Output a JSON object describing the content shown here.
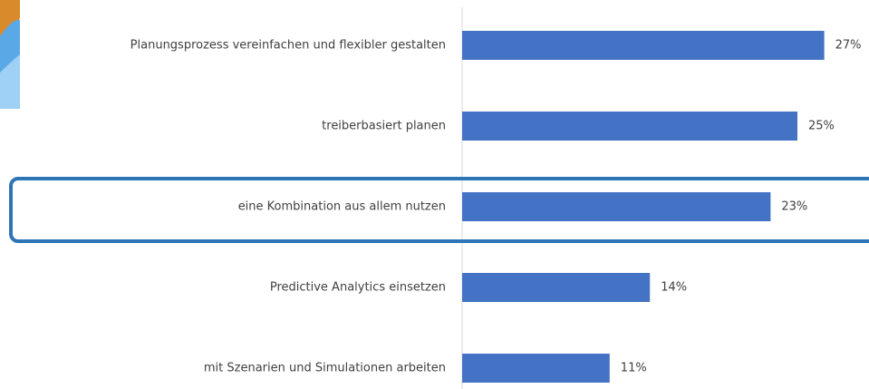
{
  "chart_data": {
    "type": "bar",
    "orientation": "horizontal",
    "categories": [
      "Planungsprozess vereinfachen und flexibler gestalten",
      "treiberbasiert planen",
      "eine Kombination aus allem nutzen",
      "Predictive Analytics einsetzen",
      "mit Szenarien und Simulationen arbeiten"
    ],
    "values": [
      27,
      25,
      23,
      14,
      11
    ],
    "value_labels": [
      "27%",
      "25%",
      "23%",
      "14%",
      "11%"
    ],
    "color": "#4472c4"
  }
}
